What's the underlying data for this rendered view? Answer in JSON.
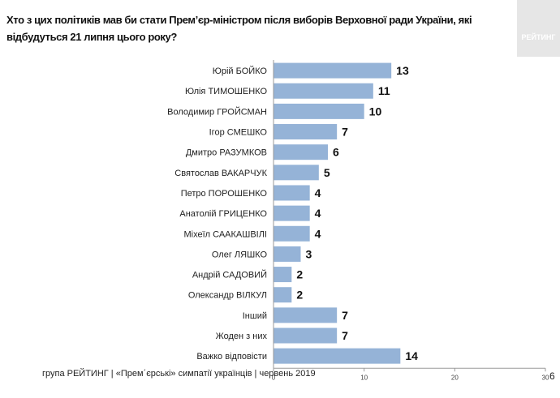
{
  "title": "Хто з цих політиків мав би стати Прем’єр-міністром після виборів Верховної ради України, які відбудуться 21 липня цього року?",
  "logo_text": "РЕЙТИНГ",
  "footer": "група РЕЙТИНГ | «Прем΄єрські» симпатії українців  | червень  2019",
  "page_number": "6",
  "chart_data": {
    "type": "bar",
    "orientation": "horizontal",
    "categories": [
      "Юрій БОЙКО",
      "Юлія ТИМОШЕНКО",
      "Володимир ГРОЙСМАН",
      "Ігор СМЕШКО",
      "Дмитро РАЗУМКОВ",
      "Святослав ВАКАРЧУК",
      "Петро ПОРОШЕНКО",
      "Анатолій ГРИЦЕНКО",
      "Міхеїл СААКАШВІЛІ",
      "Олег ЛЯШКО",
      "Андрій САДОВИЙ",
      "Олександр ВІЛКУЛ",
      "Інший",
      "Жоден з них",
      "Важко відповісти"
    ],
    "values": [
      13,
      11,
      10,
      7,
      6,
      5,
      4,
      4,
      4,
      3,
      2,
      2,
      7,
      7,
      14
    ],
    "xlim": [
      0,
      30
    ],
    "xticks": [
      0,
      10,
      20,
      30
    ],
    "bar_color": "#95b3d7",
    "grid": false
  }
}
